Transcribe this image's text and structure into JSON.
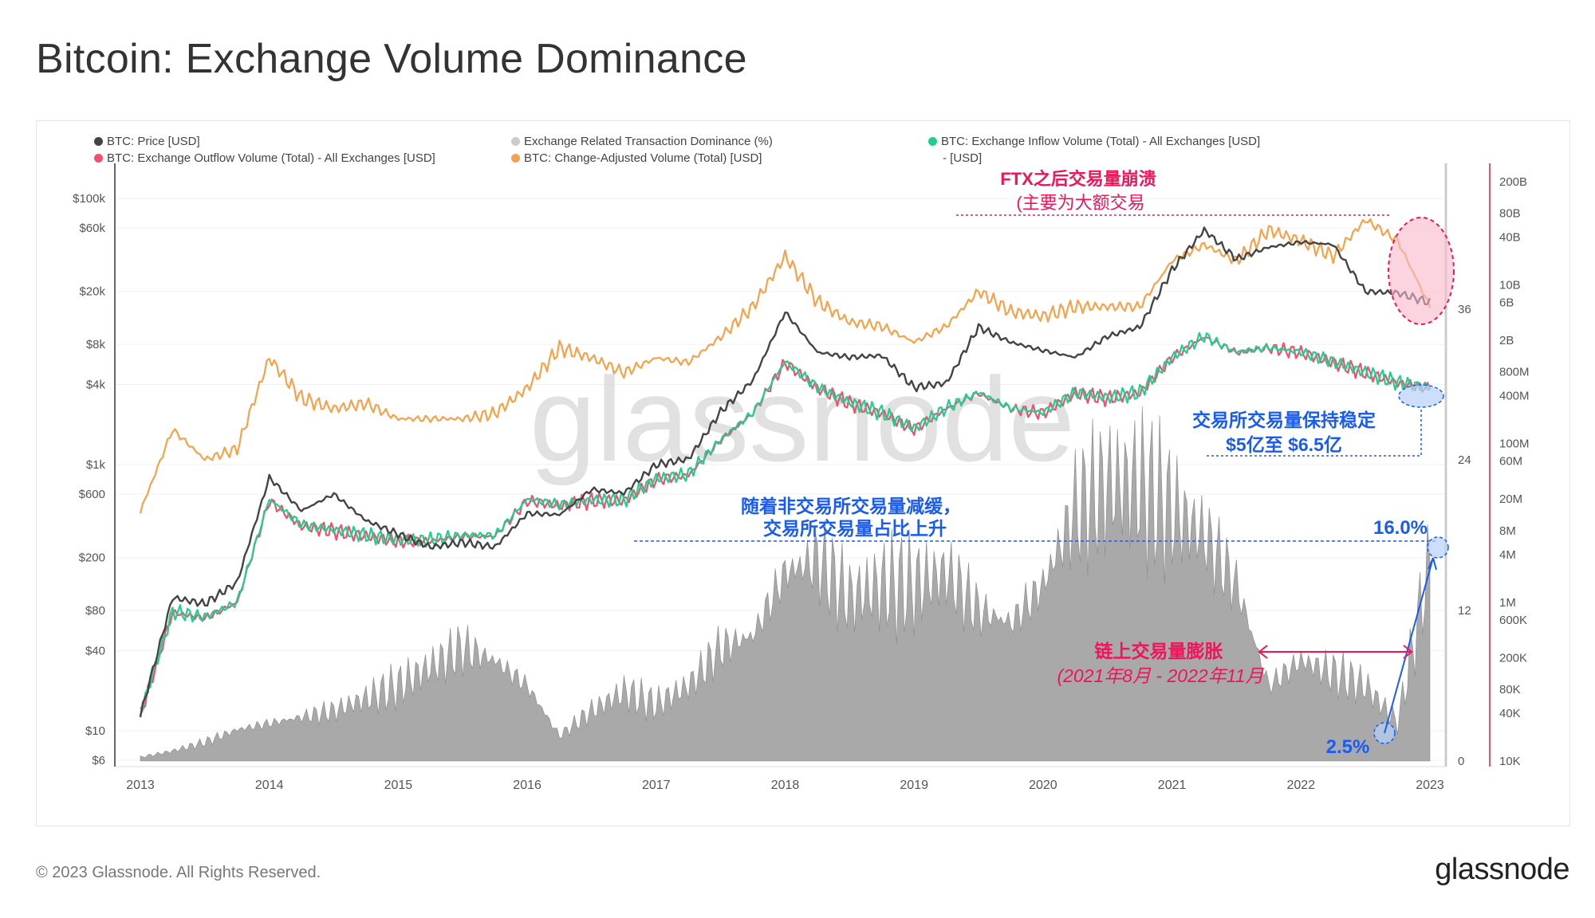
{
  "title": "Bitcoin: Exchange Volume Dominance",
  "footer": "© 2023 Glassnode. All Rights Reserved.",
  "logo": "glassnode",
  "watermark": "glassnode",
  "legend": [
    {
      "label": "BTC: Price [USD]",
      "color": "#444444"
    },
    {
      "label": "BTC: Exchange Outflow Volume (Total) - All Exchanges [USD]",
      "color": "#f0506e"
    },
    {
      "label": "Exchange Related Transaction Dominance (%)",
      "color": "#cccccc"
    },
    {
      "label": "BTC: Change-Adjusted Volume (Total) [USD]",
      "color": "#f7a14a"
    },
    {
      "label": "BTC: Exchange Inflow Volume (Total) - All Exchanges [USD]",
      "color": "#1fcf8f"
    },
    {
      "label": "- [USD]",
      "color": ""
    }
  ],
  "annotations": {
    "ftx_title": "FTX之后交易量崩溃",
    "ftx_sub": "(主要为大额交易",
    "stable_title": "交易所交易量保持稳定",
    "stable_sub": "$5亿至 $6.5亿",
    "rise_line1": "随着非交易所交易量减缓，",
    "rise_line2": "交易所交易量占比上升",
    "pct_high": "16.0%",
    "pct_low": "2.5%",
    "boom_title": "链上交易量膨胀",
    "boom_sub": "(2021年8月 - 2022年11月",
    "colors": {
      "red": "#f0145a",
      "blue": "#1a5cf0"
    }
  },
  "chart_data": {
    "type": "line",
    "title": "Bitcoin: Exchange Volume Dominance",
    "x_ticks": [
      "2013",
      "2014",
      "2015",
      "2016",
      "2017",
      "2018",
      "2019",
      "2020",
      "2021",
      "2022",
      "2023"
    ],
    "price_axis": {
      "scale": "log",
      "ticks": [
        "$6",
        "$10",
        "$40",
        "$80",
        "$200",
        "$600",
        "$1k",
        "$4k",
        "$8k",
        "$20k",
        "$60k",
        "$100k"
      ],
      "tick_values": [
        6,
        10,
        40,
        80,
        200,
        600,
        1000,
        4000,
        8000,
        20000,
        60000,
        100000
      ]
    },
    "dominance_axis": {
      "scale": "linear",
      "ticks": [
        "0",
        "12",
        "24",
        "36"
      ],
      "tick_values": [
        0,
        12,
        24,
        36
      ]
    },
    "volume_axis": {
      "scale": "log",
      "ticks": [
        "10K",
        "40K",
        "80K",
        "200K",
        "600K",
        "1M",
        "4M",
        "8M",
        "20M",
        "60M",
        "100M",
        "400M",
        "800M",
        "2B",
        "6B",
        "10B",
        "40B",
        "80B",
        "200B"
      ],
      "tick_values": [
        10000.0,
        40000.0,
        80000.0,
        200000.0,
        600000.0,
        1000000.0,
        4000000.0,
        8000000.0,
        20000000.0,
        60000000.0,
        100000000.0,
        400000000.0,
        800000000.0,
        2000000000.0,
        6000000000.0,
        10000000000.0,
        40000000000.0,
        80000000000.0,
        200000000000.0
      ]
    },
    "x": [
      2013.0,
      2013.25,
      2013.5,
      2013.75,
      2014.0,
      2014.25,
      2014.5,
      2014.75,
      2015.0,
      2015.25,
      2015.5,
      2015.75,
      2016.0,
      2016.25,
      2016.5,
      2016.75,
      2017.0,
      2017.25,
      2017.5,
      2017.75,
      2018.0,
      2018.25,
      2018.5,
      2018.75,
      2019.0,
      2019.25,
      2019.5,
      2019.75,
      2020.0,
      2020.25,
      2020.5,
      2020.75,
      2021.0,
      2021.25,
      2021.5,
      2021.75,
      2022.0,
      2022.25,
      2022.5,
      2022.75,
      2023.0
    ],
    "series": [
      {
        "name": "Exchange Related Transaction Dominance (%)",
        "axis": "dominance",
        "kind": "area",
        "color": "#a0a0a0",
        "values": [
          0.3,
          0.8,
          1.5,
          2.5,
          3,
          3.5,
          4,
          5,
          6,
          7.5,
          9,
          8,
          6,
          2,
          4,
          5.5,
          4.5,
          6,
          9,
          10,
          15,
          16,
          13,
          14,
          14,
          15,
          12,
          11,
          14,
          20,
          22,
          22,
          20,
          18,
          14,
          6,
          8,
          7,
          6,
          3,
          16
        ]
      },
      {
        "name": "BTC: Change-Adjusted Volume (Total) [USD]",
        "axis": "volume",
        "color": "#f7a14a",
        "values": [
          14000000.0,
          150000000.0,
          63000000.0,
          85000000.0,
          1200000000.0,
          370000000.0,
          275000000.0,
          320000000.0,
          205000000.0,
          205000000.0,
          205000000.0,
          240000000.0,
          500000000.0,
          1600000000.0,
          1200000000.0,
          780000000.0,
          1200000000.0,
          1050000000.0,
          2200000000.0,
          5300000000.0,
          23000000000.0,
          6200000000.0,
          3400000000.0,
          3000000000.0,
          1900000000.0,
          3000000000.0,
          8300000000.0,
          4600000000.0,
          4000000000.0,
          5300000000.0,
          5300000000.0,
          5300000000.0,
          20000000000.0,
          32000000000.0,
          20000000000.0,
          49000000000.0,
          36000000000.0,
          23000000000.0,
          66000000000.0,
          36000000000.0,
          5300000000.0
        ]
      },
      {
        "name": "BTC: Exchange Outflow Volume (Total) - All Exchanges [USD]",
        "axis": "volume",
        "color": "#f0506e",
        "values": [
          38000.0,
          740000.0,
          630000.0,
          990000.0,
          19000000.0,
          9100000.0,
          7900000.0,
          6800000.0,
          5900000.0,
          5900000.0,
          6800000.0,
          6800000.0,
          19000000.0,
          16500000.0,
          19000000.0,
          19000000.0,
          35000000.0,
          40000000.0,
          110000000.0,
          240000000.0,
          1050000000.0,
          500000000.0,
          320000000.0,
          240000000.0,
          150000000.0,
          275000000.0,
          430000000.0,
          275000000.0,
          240000000.0,
          430000000.0,
          370000000.0,
          430000000.0,
          1200000000.0,
          2200000000.0,
          1400000000.0,
          1600000000.0,
          1400000000.0,
          1050000000.0,
          780000000.0,
          580000000.0,
          500000000.0
        ]
      },
      {
        "name": "BTC: Exchange Inflow Volume (Total) - All Exchanges [USD]",
        "axis": "volume",
        "color": "#1fcf8f",
        "values": [
          40000.0,
          760000.0,
          650000.0,
          1000000.0,
          20000000.0,
          9500000.0,
          8200000.0,
          7000000.0,
          6100000.0,
          6100000.0,
          7000000.0,
          7000000.0,
          20000000.0,
          17000000.0,
          19500000.0,
          19500000.0,
          36000000.0,
          41000000.0,
          112000000.0,
          245000000.0,
          1080000000.0,
          510000000.0,
          330000000.0,
          245000000.0,
          155000000.0,
          280000000.0,
          440000000.0,
          280000000.0,
          245000000.0,
          440000000.0,
          380000000.0,
          440000000.0,
          1220000000.0,
          2250000000.0,
          1420000000.0,
          1620000000.0,
          1420000000.0,
          1070000000.0,
          790000000.0,
          590000000.0,
          510000000.0
        ]
      },
      {
        "name": "BTC: Price [USD]",
        "axis": "price",
        "color": "#444444",
        "values": [
          13,
          100,
          90,
          130,
          800,
          450,
          600,
          380,
          300,
          240,
          260,
          240,
          430,
          420,
          650,
          610,
          1000,
          1100,
          2500,
          4300,
          14000,
          7000,
          6400,
          6600,
          3800,
          4100,
          10800,
          8300,
          7200,
          6400,
          9200,
          10800,
          29000,
          58000,
          35000,
          43000,
          47000,
          45000,
          20000,
          19500,
          16500
        ]
      }
    ]
  }
}
